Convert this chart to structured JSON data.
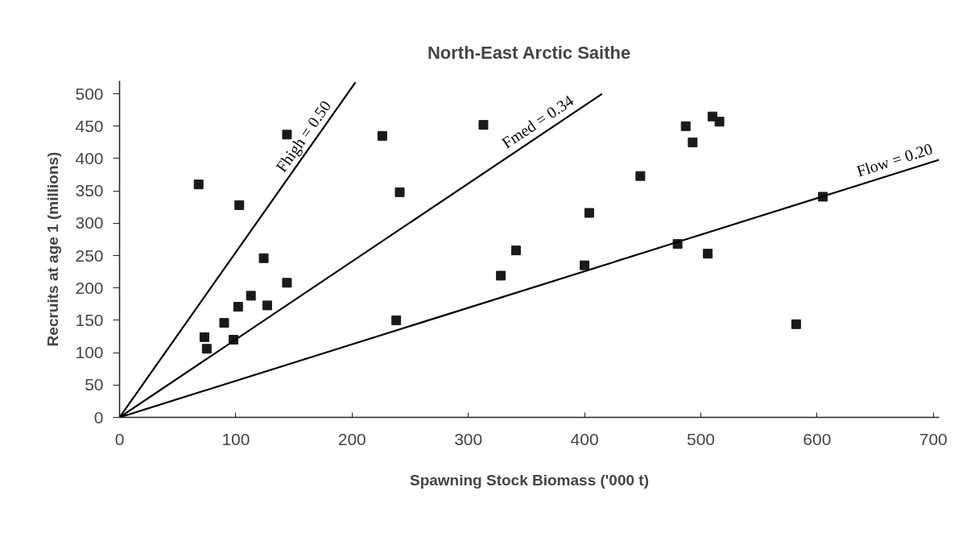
{
  "chart_data": {
    "type": "scatter",
    "title": "North-East Arctic Saithe",
    "xlabel": "Spawning Stock Biomass ('000 t)",
    "ylabel": "Recruits at age 1 (millions)",
    "xlim": [
      0,
      705
    ],
    "ylim": [
      0,
      520
    ],
    "xticks": [
      0,
      100,
      200,
      300,
      400,
      500,
      600,
      700
    ],
    "yticks": [
      0,
      50,
      100,
      150,
      200,
      250,
      300,
      350,
      400,
      450,
      500
    ],
    "grid": false,
    "series": [
      {
        "marker": "square",
        "color": "#1a1a1a",
        "x": [
          68,
          73,
          75,
          90,
          98,
          102,
          103,
          113,
          124,
          127,
          144,
          144,
          226,
          238,
          241,
          313,
          328,
          341,
          400,
          404,
          448,
          480,
          487,
          493,
          506,
          510,
          516,
          582,
          605
        ],
        "values": [
          360,
          124,
          106,
          146,
          120,
          171,
          328,
          188,
          246,
          173,
          437,
          208,
          435,
          150,
          348,
          452,
          219,
          258,
          235,
          316,
          373,
          268,
          450,
          425,
          253,
          465,
          457,
          144,
          341
        ]
      },
      {
        "type": "line",
        "name": "Fhigh = 0.50",
        "color": "#000000",
        "x": [
          0,
          203
        ],
        "values": [
          0,
          518
        ]
      },
      {
        "type": "line",
        "name": "Fmed = 0.34",
        "color": "#000000",
        "x": [
          0,
          415
        ],
        "values": [
          0,
          500
        ]
      },
      {
        "type": "line",
        "name": "Flow = 0.20",
        "color": "#000000",
        "x": [
          0,
          705
        ],
        "values": [
          0,
          398
        ]
      }
    ]
  }
}
